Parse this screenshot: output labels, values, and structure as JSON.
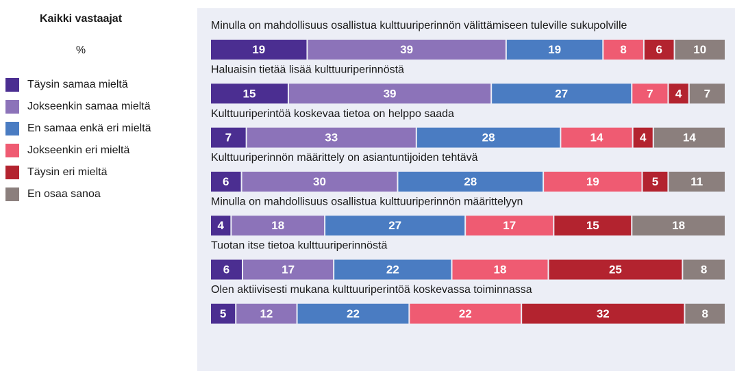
{
  "chart_data": {
    "type": "stacked-bar",
    "title": "Kaikki vastaajat",
    "subtitle": "%",
    "categories": [
      "Minulla on mahdollisuus osallistua kulttuuriperinnön välittämiseen tuleville sukupolville",
      "Haluaisin tietää lisää kulttuuriperinnöstä",
      "Kulttuuriperintöä koskevaa tietoa on helppo saada",
      "Kulttuuriperinnön määrittely on asiantuntijoiden tehtävä",
      "Minulla on mahdollisuus osallistua kulttuuriperinnön määrittelyyn",
      "Tuotan itse tietoa kulttuuriperinnöstä",
      "Olen aktiivisesti mukana kulttuuriperintöä koskevassa toiminnassa"
    ],
    "series": [
      {
        "name": "Täysin samaa mieltä",
        "color": "#4b2e91",
        "values": [
          19,
          15,
          7,
          6,
          4,
          6,
          5
        ]
      },
      {
        "name": "Jokseenkin samaa mieltä",
        "color": "#8c73b9",
        "values": [
          39,
          39,
          33,
          30,
          18,
          17,
          12
        ]
      },
      {
        "name": "En samaa enkä eri mieltä",
        "color": "#4a7cc2",
        "values": [
          19,
          27,
          28,
          28,
          27,
          22,
          22
        ]
      },
      {
        "name": "Jokseenkin eri mieltä",
        "color": "#ef5b72",
        "values": [
          8,
          7,
          14,
          19,
          17,
          18,
          22
        ]
      },
      {
        "name": "Täysin eri mieltä",
        "color": "#b3232f",
        "values": [
          6,
          4,
          4,
          5,
          15,
          25,
          32
        ]
      },
      {
        "name": "En osaa sanoa",
        "color": "#8b7f7d",
        "values": [
          10,
          7,
          14,
          11,
          18,
          8,
          8
        ]
      }
    ]
  }
}
